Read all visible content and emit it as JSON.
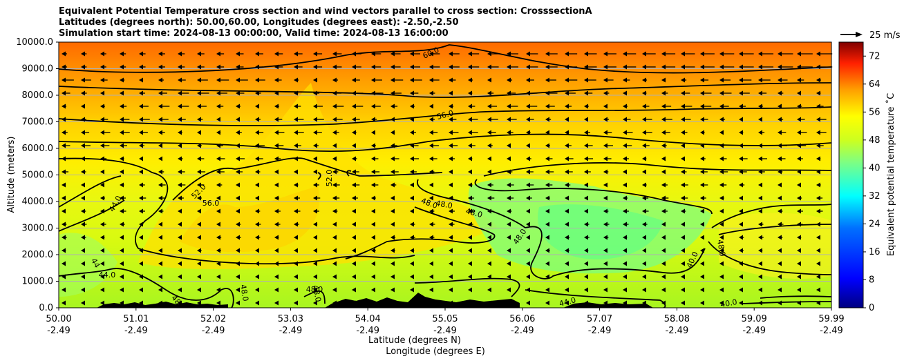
{
  "title_lines": [
    "Equivalent Potential Temperature cross section and wind vectors parallel to cross section: CrosssectionA",
    "Latitudes (degrees north): 50.00,60.00, Longitudes (degrees east): -2.50,-2.50",
    "Simulation start time: 2024-08-13 00:00:00, Valid time: 2024-08-13 16:00:00"
  ],
  "chart_data": {
    "type": "heatmap",
    "ylabel": "Altitude (meters)",
    "xlabel_lines": [
      "Latitude (degrees N)",
      "Longitude (degrees E)"
    ],
    "ylim": [
      0,
      10000
    ],
    "yticks": [
      "0.0",
      "1000.0",
      "2000.0",
      "3000.0",
      "4000.0",
      "5000.0",
      "6000.0",
      "7000.0",
      "8000.0",
      "9000.0",
      "10000.0"
    ],
    "xticks_lat": [
      "50.00",
      "51.01",
      "52.02",
      "53.03",
      "54.04",
      "55.05",
      "56.06",
      "57.07",
      "58.08",
      "59.09",
      "59.99"
    ],
    "xticks_lon": [
      "-2.49",
      "-2.49",
      "-2.49",
      "-2.49",
      "-2.49",
      "-2.49",
      "-2.49",
      "-2.49",
      "-2.49",
      "-2.49",
      "-2.49"
    ],
    "grid": "horizontal",
    "colorbar": {
      "label": "Equivalent potential temperature ˚C",
      "ticks": [
        "0",
        "8",
        "16",
        "24",
        "32",
        "40",
        "48",
        "56",
        "64",
        "72"
      ],
      "range": [
        0,
        76
      ]
    },
    "wind_key": "25 m/s",
    "contour_labels": [
      "60.0",
      "56.0",
      "52.0",
      "56.0",
      "52.0",
      "44.0",
      "44",
      "44.0",
      "48",
      "48.0",
      "48.0",
      "48.0",
      "48.0",
      "48.0",
      "48.0",
      "48.0",
      "40.0",
      "48.0",
      "44.0",
      "40.0"
    ]
  }
}
